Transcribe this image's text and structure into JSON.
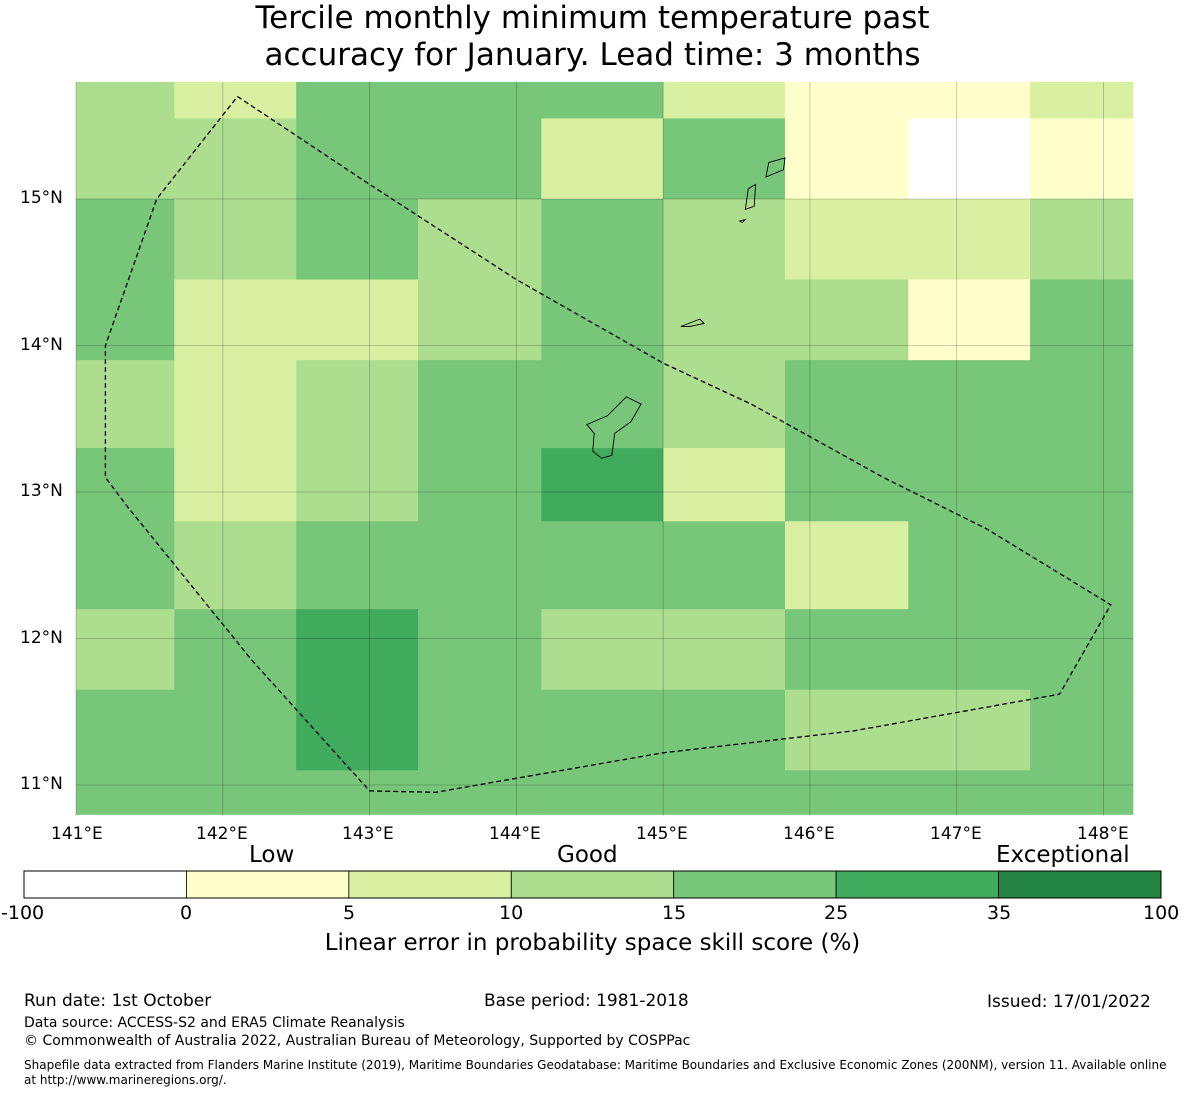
{
  "title": {
    "line1": "Tercile monthly minimum temperature past",
    "line2": "accuracy for January. Lead time: 3 months"
  },
  "map": {
    "lon_range": [
      141.0,
      148.2
    ],
    "lat_range": [
      10.8,
      15.8
    ],
    "lon_ticks": [
      "141°E",
      "142°E",
      "143°E",
      "144°E",
      "145°E",
      "146°E",
      "147°E",
      "148°E"
    ],
    "lat_ticks": [
      "15°N",
      "14°N",
      "13°N",
      "12°N",
      "11°N"
    ],
    "cells": [
      {
        "lon": [
          141.0,
          141.67
        ],
        "lat": [
          15.0,
          15.8
        ],
        "category": 3
      },
      {
        "lon": [
          141.67,
          142.5
        ],
        "lat": [
          15.55,
          15.8
        ],
        "category": 2
      },
      {
        "lon": [
          141.67,
          142.5
        ],
        "lat": [
          15.0,
          15.55
        ],
        "category": 3
      },
      {
        "lon": [
          142.5,
          144.17
        ],
        "lat": [
          15.0,
          15.8
        ],
        "category": 4
      },
      {
        "lon": [
          144.17,
          145.0
        ],
        "lat": [
          15.55,
          15.8
        ],
        "category": 4
      },
      {
        "lon": [
          144.17,
          145.0
        ],
        "lat": [
          15.0,
          15.55
        ],
        "category": 2
      },
      {
        "lon": [
          145.0,
          145.83
        ],
        "lat": [
          15.55,
          15.8
        ],
        "category": 2
      },
      {
        "lon": [
          145.0,
          145.83
        ],
        "lat": [
          15.0,
          15.55
        ],
        "category": 4
      },
      {
        "lon": [
          145.83,
          147.5
        ],
        "lat": [
          15.55,
          15.8
        ],
        "category": 1
      },
      {
        "lon": [
          145.83,
          146.67
        ],
        "lat": [
          15.0,
          15.55
        ],
        "category": 1
      },
      {
        "lon": [
          146.67,
          147.5
        ],
        "lat": [
          15.0,
          15.55
        ],
        "category": 0
      },
      {
        "lon": [
          147.5,
          148.2
        ],
        "lat": [
          15.55,
          15.8
        ],
        "category": 2
      },
      {
        "lon": [
          147.5,
          148.2
        ],
        "lat": [
          15.0,
          15.55
        ],
        "category": 1
      },
      {
        "lon": [
          141.0,
          141.67
        ],
        "lat": [
          13.9,
          15.0
        ],
        "category": 4
      },
      {
        "lon": [
          141.67,
          142.5
        ],
        "lat": [
          14.45,
          15.0
        ],
        "category": 3
      },
      {
        "lon": [
          142.5,
          143.33
        ],
        "lat": [
          14.45,
          15.0
        ],
        "category": 4
      },
      {
        "lon": [
          143.33,
          144.17
        ],
        "lat": [
          14.45,
          15.0
        ],
        "category": 3
      },
      {
        "lon": [
          144.17,
          145.0
        ],
        "lat": [
          14.45,
          15.0
        ],
        "category": 4
      },
      {
        "lon": [
          145.0,
          145.83
        ],
        "lat": [
          14.45,
          15.0
        ],
        "category": 3
      },
      {
        "lon": [
          145.83,
          147.5
        ],
        "lat": [
          14.45,
          15.0
        ],
        "category": 2
      },
      {
        "lon": [
          147.5,
          148.2
        ],
        "lat": [
          14.45,
          15.0
        ],
        "category": 3
      },
      {
        "lon": [
          141.67,
          143.33
        ],
        "lat": [
          13.9,
          14.45
        ],
        "category": 2
      },
      {
        "lon": [
          143.33,
          144.17
        ],
        "lat": [
          13.9,
          14.45
        ],
        "category": 3
      },
      {
        "lon": [
          144.17,
          145.0
        ],
        "lat": [
          13.9,
          14.45
        ],
        "category": 4
      },
      {
        "lon": [
          145.0,
          146.67
        ],
        "lat": [
          13.9,
          14.45
        ],
        "category": 3
      },
      {
        "lon": [
          146.67,
          147.5
        ],
        "lat": [
          13.9,
          14.45
        ],
        "category": 1
      },
      {
        "lon": [
          147.5,
          148.2
        ],
        "lat": [
          13.9,
          14.45
        ],
        "category": 4
      },
      {
        "lon": [
          141.0,
          141.67
        ],
        "lat": [
          13.3,
          13.9
        ],
        "category": 3
      },
      {
        "lon": [
          141.0,
          141.67
        ],
        "lat": [
          12.2,
          13.3
        ],
        "category": 4
      },
      {
        "lon": [
          141.67,
          142.5
        ],
        "lat": [
          12.8,
          13.9
        ],
        "category": 2
      },
      {
        "lon": [
          142.5,
          143.33
        ],
        "lat": [
          12.8,
          13.9
        ],
        "category": 3
      },
      {
        "lon": [
          143.33,
          144.17
        ],
        "lat": [
          12.8,
          13.9
        ],
        "category": 4
      },
      {
        "lon": [
          144.17,
          145.0
        ],
        "lat": [
          13.3,
          13.9
        ],
        "category": 4
      },
      {
        "lon": [
          144.17,
          145.0
        ],
        "lat": [
          12.8,
          13.3
        ],
        "category": 5
      },
      {
        "lon": [
          145.0,
          146.67
        ],
        "lat": [
          13.3,
          13.9
        ],
        "category": 3
      },
      {
        "lon": [
          145.0,
          145.83
        ],
        "lat": [
          12.8,
          13.3
        ],
        "category": 2
      },
      {
        "lon": [
          145.83,
          148.2
        ],
        "lat": [
          12.8,
          13.9
        ],
        "category": 4
      },
      {
        "lon": [
          141.67,
          142.5
        ],
        "lat": [
          12.2,
          12.8
        ],
        "category": 3
      },
      {
        "lon": [
          142.5,
          145.83
        ],
        "lat": [
          12.2,
          12.8
        ],
        "category": 4
      },
      {
        "lon": [
          145.83,
          146.67
        ],
        "lat": [
          12.2,
          12.8
        ],
        "category": 2
      },
      {
        "lon": [
          146.67,
          148.2
        ],
        "lat": [
          12.2,
          12.8
        ],
        "category": 4
      },
      {
        "lon": [
          141.0,
          141.67
        ],
        "lat": [
          11.65,
          12.2
        ],
        "category": 3
      },
      {
        "lon": [
          141.0,
          142.5
        ],
        "lat": [
          10.8,
          11.65
        ],
        "category": 4
      },
      {
        "lon": [
          141.67,
          142.5
        ],
        "lat": [
          11.65,
          12.2
        ],
        "category": 4
      },
      {
        "lon": [
          142.5,
          143.33
        ],
        "lat": [
          11.1,
          12.2
        ],
        "category": 5
      },
      {
        "lon": [
          142.5,
          143.33
        ],
        "lat": [
          10.8,
          11.1
        ],
        "category": 4
      },
      {
        "lon": [
          143.33,
          144.17
        ],
        "lat": [
          10.8,
          12.2
        ],
        "category": 4
      },
      {
        "lon": [
          144.17,
          145.83
        ],
        "lat": [
          11.65,
          12.2
        ],
        "category": 3
      },
      {
        "lon": [
          144.17,
          145.83
        ],
        "lat": [
          10.8,
          11.65
        ],
        "category": 4
      },
      {
        "lon": [
          145.83,
          148.2
        ],
        "lat": [
          11.65,
          12.2
        ],
        "category": 4
      },
      {
        "lon": [
          145.83,
          147.5
        ],
        "lat": [
          11.1,
          11.65
        ],
        "category": 3
      },
      {
        "lon": [
          145.83,
          147.5
        ],
        "lat": [
          10.8,
          11.1
        ],
        "category": 4
      },
      {
        "lon": [
          147.5,
          148.2
        ],
        "lat": [
          10.8,
          11.65
        ],
        "category": 4
      }
    ],
    "eez_boundary": [
      [
        142.1,
        15.7
      ],
      [
        143.0,
        15.1
      ],
      [
        144.0,
        14.45
      ],
      [
        145.0,
        13.88
      ],
      [
        145.6,
        13.6
      ],
      [
        146.5,
        13.1
      ],
      [
        147.2,
        12.75
      ],
      [
        148.05,
        12.23
      ],
      [
        147.7,
        11.62
      ],
      [
        146.3,
        11.37
      ],
      [
        145.0,
        11.22
      ],
      [
        143.45,
        10.95
      ],
      [
        143.0,
        10.96
      ],
      [
        142.2,
        11.85
      ],
      [
        141.35,
        12.9
      ],
      [
        141.2,
        13.1
      ],
      [
        141.2,
        14.0
      ],
      [
        141.55,
        15.0
      ],
      [
        142.1,
        15.7
      ]
    ],
    "islands": [
      {
        "name": "guam",
        "outline": [
          [
            144.75,
            13.65
          ],
          [
            144.85,
            13.6
          ],
          [
            144.78,
            13.48
          ],
          [
            144.67,
            13.4
          ],
          [
            144.65,
            13.25
          ],
          [
            144.58,
            13.23
          ],
          [
            144.52,
            13.28
          ],
          [
            144.53,
            13.4
          ],
          [
            144.48,
            13.46
          ],
          [
            144.62,
            13.52
          ],
          [
            144.75,
            13.65
          ]
        ]
      },
      {
        "name": "rota",
        "outline": [
          [
            145.12,
            14.13
          ],
          [
            145.25,
            14.18
          ],
          [
            145.28,
            14.15
          ],
          [
            145.18,
            14.13
          ],
          [
            145.12,
            14.13
          ]
        ]
      },
      {
        "name": "tinian",
        "outline": [
          [
            145.58,
            15.07
          ],
          [
            145.63,
            15.1
          ],
          [
            145.62,
            14.95
          ],
          [
            145.56,
            14.93
          ],
          [
            145.58,
            15.07
          ]
        ]
      },
      {
        "name": "saipan",
        "outline": [
          [
            145.72,
            15.25
          ],
          [
            145.83,
            15.28
          ],
          [
            145.82,
            15.2
          ],
          [
            145.7,
            15.15
          ],
          [
            145.72,
            15.25
          ]
        ]
      },
      {
        "name": "aguijan",
        "outline": [
          [
            145.52,
            14.85
          ],
          [
            145.56,
            14.86
          ],
          [
            145.54,
            14.84
          ],
          [
            145.52,
            14.85
          ]
        ]
      }
    ]
  },
  "colorbar": {
    "category_labels": [
      "Low",
      "Good",
      "Exceptional"
    ],
    "bin_colors": [
      "#ffffff",
      "#ffffcc",
      "#d9f0a3",
      "#addd8e",
      "#78c679",
      "#41ab5d",
      "#238443"
    ],
    "tick_labels": [
      "-100",
      "0",
      "5",
      "10",
      "15",
      "25",
      "35",
      "100"
    ],
    "label": "Linear error in probability space skill score (%)"
  },
  "footer": {
    "run_date": "Run date: 1st October",
    "base_period": "Base period: 1981-2018",
    "issued": "Issued: 17/01/2022",
    "data_source": "Data source: ACCESS-S2 and ERA5 Climate Reanalysis",
    "copyright": "© Commonwealth of Australia 2022, Australian Bureau of Meteorology, Supported by COSPPac",
    "shapefile_line1": "Shapefile data extracted from Flanders Marine Institute (2019), Maritime Boundaries Geodatabase: Maritime Boundaries and Exclusive Economic Zones (200NM), version 11. Available online",
    "shapefile_line2": "at http://www.marineregions.org/."
  }
}
